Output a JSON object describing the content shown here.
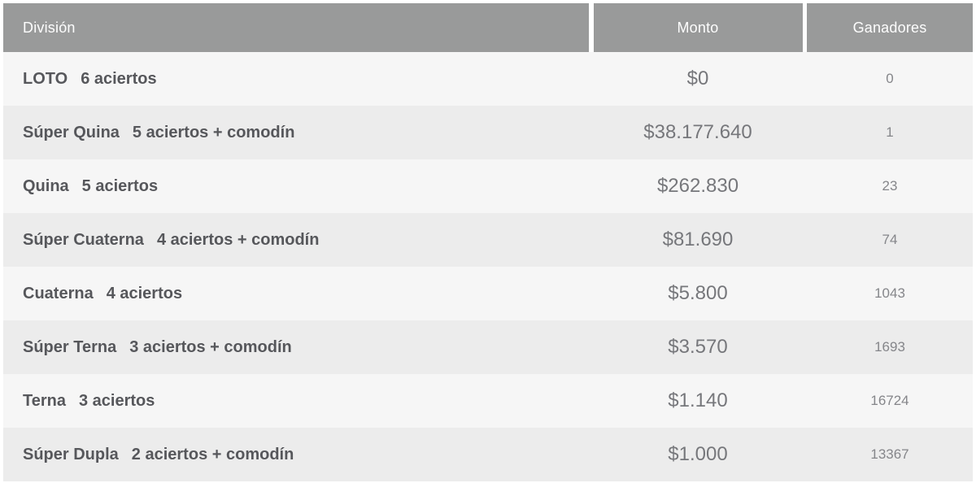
{
  "table": {
    "headers": {
      "division": "División",
      "monto": "Monto",
      "ganadores": "Ganadores"
    },
    "rows": [
      {
        "division": "LOTO",
        "detail": "6 aciertos",
        "monto": "$0",
        "ganadores": "0"
      },
      {
        "division": "Súper Quina",
        "detail": "5 aciertos + comodín",
        "monto": "$38.177.640",
        "ganadores": "1"
      },
      {
        "division": "Quina",
        "detail": "5 aciertos",
        "monto": "$262.830",
        "ganadores": "23"
      },
      {
        "division": "Súper Cuaterna",
        "detail": "4 aciertos + comodín",
        "monto": "$81.690",
        "ganadores": "74"
      },
      {
        "division": "Cuaterna",
        "detail": "4 aciertos",
        "monto": "$5.800",
        "ganadores": "1043"
      },
      {
        "division": "Súper Terna",
        "detail": "3 aciertos + comodín",
        "monto": "$3.570",
        "ganadores": "1693"
      },
      {
        "division": "Terna",
        "detail": "3 aciertos",
        "monto": "$1.140",
        "ganadores": "16724"
      },
      {
        "division": "Súper Dupla",
        "detail": "2 aciertos + comodín",
        "monto": "$1.000",
        "ganadores": "13367"
      }
    ],
    "colors": {
      "header_bg": "#999a9a",
      "header_text": "#fdfdfd",
      "row_odd_bg": "#f6f6f6",
      "row_even_bg": "#ececec",
      "division_text": "#56575b",
      "monto_text": "#76777b",
      "ganadores_text": "#85868a"
    }
  }
}
